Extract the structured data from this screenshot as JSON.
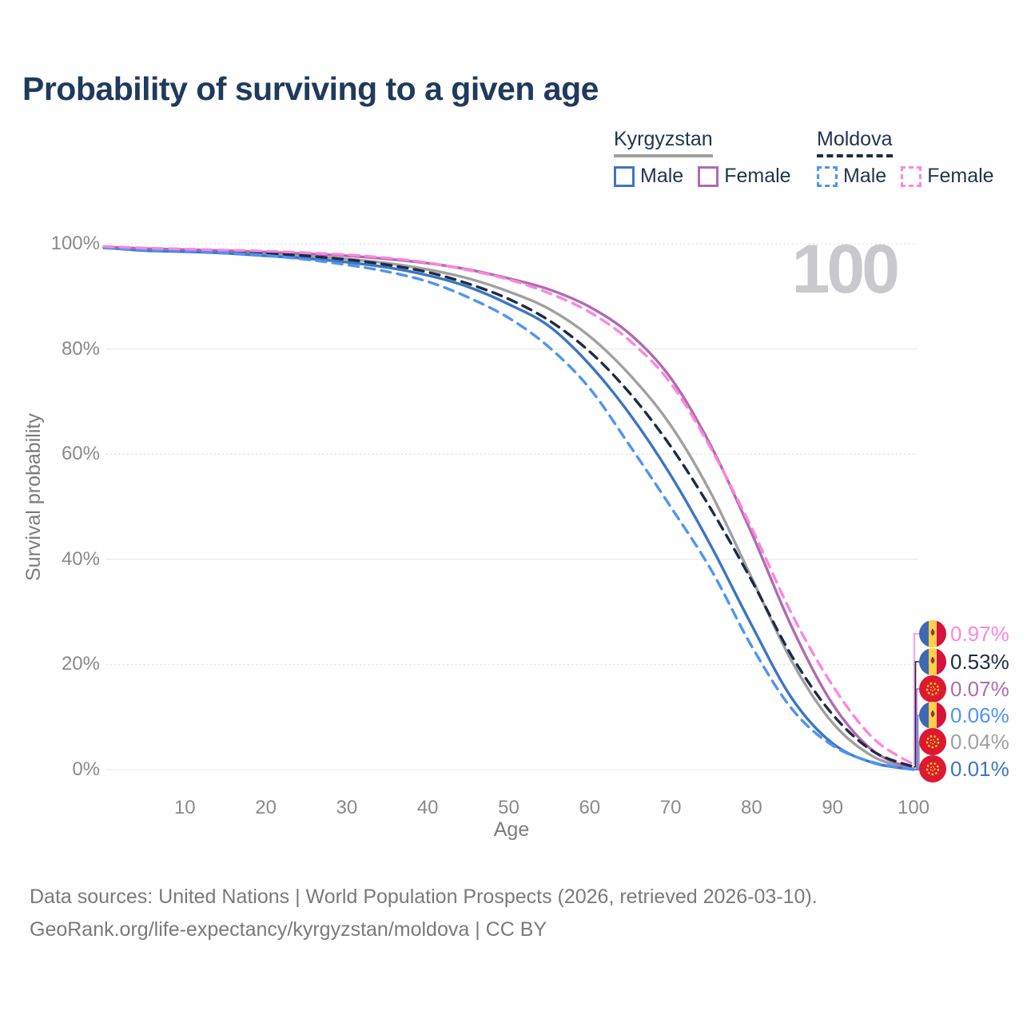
{
  "title": "Probability of surviving to a given age",
  "watermark_age_label": "100",
  "legend": {
    "groups": [
      {
        "id": "kyrgyzstan",
        "name": "Kyrgyzstan",
        "line_style": "solid",
        "line_color": "#A0A0A0",
        "items": [
          {
            "label": "Male",
            "color": "#3C75C3",
            "dashed": false
          },
          {
            "label": "Female",
            "color": "#AE6CB0",
            "dashed": false
          }
        ]
      },
      {
        "id": "moldova",
        "name": "Moldova",
        "line_style": "dashed",
        "line_color": "#1D2B45",
        "items": [
          {
            "label": "Male",
            "color": "#4D94F6",
            "dashed": true
          },
          {
            "label": "Female",
            "color": "#FF85DE",
            "dashed": true
          }
        ]
      }
    ]
  },
  "chart_data": {
    "type": "line",
    "title": "Probability of surviving to a given age",
    "xlabel": "Age",
    "ylabel": "Survival probability",
    "xlim": [
      0,
      100
    ],
    "ylim_pct": [
      0,
      100
    ],
    "grid": "horizontal",
    "legend_position": "top-right",
    "x_tick_labels": [
      "10",
      "20",
      "30",
      "40",
      "50",
      "60",
      "70",
      "80",
      "90",
      "100"
    ],
    "y_tick_labels": [
      "0%",
      "20%",
      "40%",
      "60%",
      "80%",
      "100%"
    ],
    "ages": [
      0,
      5,
      10,
      15,
      20,
      25,
      30,
      35,
      40,
      45,
      50,
      55,
      60,
      65,
      70,
      75,
      80,
      85,
      90,
      95,
      100
    ],
    "series": [
      {
        "id": "kg_total",
        "name": "Kyrgyzstan — Total",
        "country": "Kyrgyzstan",
        "sex": "Total",
        "color": "#A0A0A0",
        "dashed": false,
        "values": [
          99.3,
          98.9,
          98.7,
          98.5,
          98.1,
          97.6,
          97.1,
          96.3,
          95.1,
          93.4,
          90.9,
          87.6,
          82.4,
          75.0,
          65.5,
          52.5,
          36.5,
          20.5,
          8.9,
          2.5,
          0.04
        ]
      },
      {
        "id": "kg_male",
        "name": "Kyrgyzstan — Male",
        "country": "Kyrgyzstan",
        "sex": "Male",
        "color": "#3C75C3",
        "dashed": false,
        "values": [
          99.3,
          98.7,
          98.5,
          98.2,
          97.7,
          97.2,
          96.5,
          95.5,
          94.0,
          91.8,
          88.5,
          84.3,
          77.0,
          67.5,
          56.0,
          42.5,
          27.5,
          13.5,
          5.0,
          1.3,
          0.01
        ]
      },
      {
        "id": "kg_female",
        "name": "Kyrgyzstan — Female",
        "country": "Kyrgyzstan",
        "sex": "Female",
        "color": "#AE6CB0",
        "dashed": false,
        "values": [
          99.4,
          99.1,
          98.9,
          98.7,
          98.4,
          98.1,
          97.7,
          97.1,
          96.3,
          95.1,
          93.4,
          91.3,
          88.0,
          82.8,
          74.5,
          61.5,
          45.0,
          27.0,
          12.5,
          3.6,
          0.07
        ]
      },
      {
        "id": "md_total",
        "name": "Moldova — Total",
        "country": "Moldova",
        "sex": "Total",
        "color": "#1D2B45",
        "dashed": true,
        "values": [
          99.3,
          99.0,
          98.8,
          98.5,
          98.2,
          97.7,
          97.0,
          96.0,
          94.6,
          92.4,
          89.5,
          85.4,
          79.5,
          71.5,
          61.5,
          49.5,
          36.0,
          21.5,
          10.5,
          3.5,
          0.53
        ]
      },
      {
        "id": "md_male",
        "name": "Moldova — Male",
        "country": "Moldova",
        "sex": "Male",
        "color": "#4D94F6",
        "dashed": true,
        "values": [
          99.2,
          98.8,
          98.6,
          98.3,
          97.8,
          97.0,
          96.0,
          94.7,
          92.8,
          89.8,
          85.9,
          80.3,
          72.5,
          61.5,
          50.0,
          38.0,
          23.5,
          11.5,
          4.6,
          1.4,
          0.06
        ]
      },
      {
        "id": "md_female",
        "name": "Moldova — Female",
        "country": "Moldova",
        "sex": "Female",
        "color": "#FF85DE",
        "dashed": true,
        "values": [
          99.5,
          99.2,
          99.0,
          98.8,
          98.6,
          98.3,
          97.9,
          97.3,
          96.4,
          95.0,
          93.2,
          90.6,
          87.0,
          81.5,
          73.5,
          61.0,
          46.0,
          29.5,
          16.0,
          6.0,
          0.97
        ]
      }
    ]
  },
  "end_labels": [
    {
      "value": "0.97%",
      "series": "md_female",
      "color": "#FF85DE",
      "flag": "moldova"
    },
    {
      "value": "0.53%",
      "series": "md_total",
      "color": "#1D2B45",
      "flag": "moldova"
    },
    {
      "value": "0.07%",
      "series": "kg_female",
      "color": "#AE6CB0",
      "flag": "kyrgyzstan"
    },
    {
      "value": "0.06%",
      "series": "md_male",
      "color": "#4D94F6",
      "flag": "moldova"
    },
    {
      "value": "0.04%",
      "series": "kg_total",
      "color": "#A0A0A0",
      "flag": "kyrgyzstan"
    },
    {
      "value": "0.01%",
      "series": "kg_male",
      "color": "#3C75C3",
      "flag": "kyrgyzstan"
    }
  ],
  "footer": {
    "line1": "Data sources: United Nations | World Population Prospects (2026, retrieved 2026-03-10).",
    "line2": "GeoRank.org/life-expectancy/kyrgyzstan/moldova | CC BY"
  }
}
